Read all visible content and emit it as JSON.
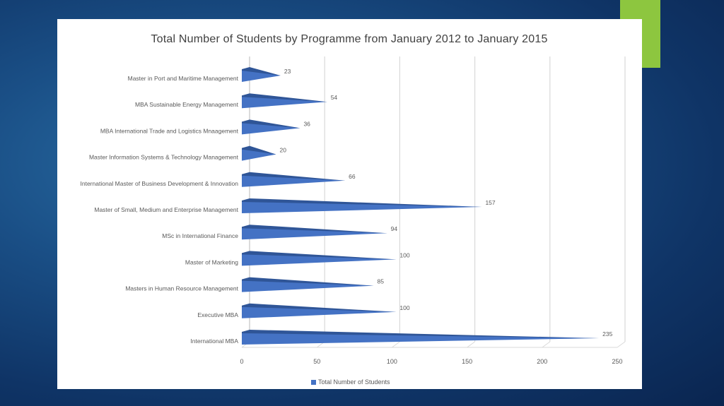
{
  "colors": {
    "accent": "#8dc63f",
    "series": "#4472c4",
    "series_dark": "#2f5597"
  },
  "chart_data": {
    "type": "bar",
    "orientation": "horizontal",
    "title": "Total Number of Students by Programme from January 2012 to January 2015",
    "categories": [
      "Master in Port and Maritime Management",
      "MBA Sustainable Energy Management",
      "MBA International Trade and Logistics Mnaagement",
      "Master Information Systems & Technology Management",
      "International Master of Business Development & Innovation",
      "Master of Small, Medium and Enterprise Management",
      "MSc in International Finance",
      "Master of Marketing",
      "Masters in Human Resource Management",
      "Executive MBA",
      "International MBA"
    ],
    "series": [
      {
        "name": "Total Number of Students",
        "values": [
          23,
          54,
          36,
          20,
          66,
          157,
          94,
          100,
          85,
          100,
          235
        ]
      }
    ],
    "xlim": [
      0,
      250
    ],
    "xticks": [
      0,
      50,
      100,
      150,
      200,
      250
    ],
    "grid": true,
    "legend": "bottom",
    "data_labels": true
  }
}
